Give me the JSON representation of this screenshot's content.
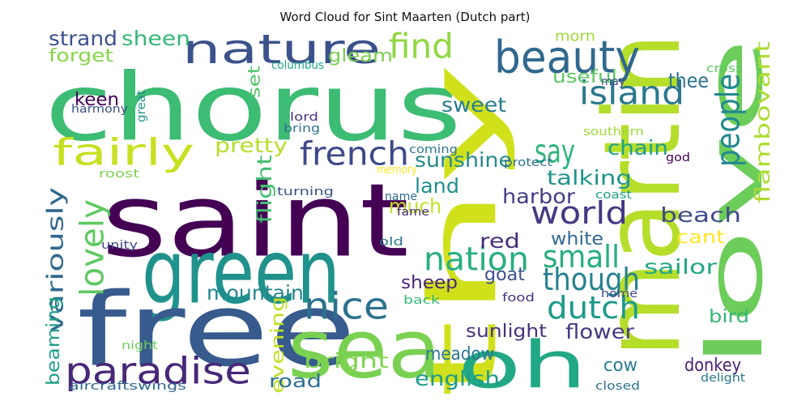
{
  "title": "Word Cloud for Sint Maarten (Dutch part)",
  "words": [
    {
      "text": "chorus",
      "color": "#3dbc74"
    },
    {
      "text": "saint",
      "color": "#440154"
    },
    {
      "text": "thy",
      "color": "#d0e11c"
    },
    {
      "text": "green",
      "color": "#20928c"
    },
    {
      "text": "free",
      "color": "#375b8d"
    },
    {
      "text": "martin",
      "color": "#b5de2b"
    },
    {
      "text": "sea",
      "color": "#7ad151"
    },
    {
      "text": "love",
      "color": "#6ccd5a"
    },
    {
      "text": "oh",
      "color": "#22a884"
    },
    {
      "text": "nature",
      "color": "#3b528b"
    },
    {
      "text": "beauty",
      "color": "#31688e"
    },
    {
      "text": "paradise",
      "color": "#482878"
    },
    {
      "text": "fairly",
      "color": "#c8e020"
    },
    {
      "text": "nice",
      "color": "#2c728e"
    },
    {
      "text": "french",
      "color": "#3e4989"
    },
    {
      "text": "island",
      "color": "#2a788e"
    },
    {
      "text": "world",
      "color": "#443983"
    },
    {
      "text": "say",
      "color": "#2fb47c"
    },
    {
      "text": "find",
      "color": "#90d743"
    },
    {
      "text": "lovely",
      "color": "#5ec962"
    },
    {
      "text": "nation",
      "color": "#29af7f"
    },
    {
      "text": "small",
      "color": "#28ae80"
    },
    {
      "text": "people",
      "color": "#23898e"
    },
    {
      "text": "dutch",
      "color": "#1f9a8a"
    },
    {
      "text": "though",
      "color": "#26828e"
    },
    {
      "text": "flamboyant",
      "color": "#addc30"
    },
    {
      "text": "variously",
      "color": "#31688e"
    },
    {
      "text": "strand",
      "color": "#3b528b"
    },
    {
      "text": "sheen",
      "color": "#35b779"
    },
    {
      "text": "gleam",
      "color": "#7ad151"
    },
    {
      "text": "forget",
      "color": "#86d549"
    },
    {
      "text": "morn",
      "color": "#9fda3a"
    },
    {
      "text": "thee",
      "color": "#2c728e"
    },
    {
      "text": "useful",
      "color": "#5ec962"
    },
    {
      "text": "sweet",
      "color": "#287c8e"
    },
    {
      "text": "keen",
      "color": "#440154"
    },
    {
      "text": "set",
      "color": "#52c569"
    },
    {
      "text": "pretty",
      "color": "#b5de2b"
    },
    {
      "text": "sunshine",
      "color": "#23898e"
    },
    {
      "text": "chain",
      "color": "#1f9e89"
    },
    {
      "text": "talking",
      "color": "#1f958b"
    },
    {
      "text": "land",
      "color": "#21918c"
    },
    {
      "text": "harbor",
      "color": "#433e85"
    },
    {
      "text": "much",
      "color": "#c2df23"
    },
    {
      "text": "red",
      "color": "#472d7b"
    },
    {
      "text": "beach",
      "color": "#3e4a89"
    },
    {
      "text": "flight",
      "color": "#44bf70"
    },
    {
      "text": "white",
      "color": "#31688e"
    },
    {
      "text": "cant",
      "color": "#fde725"
    },
    {
      "text": "sailor",
      "color": "#21a685"
    },
    {
      "text": "mountain",
      "color": "#24868e"
    },
    {
      "text": "goat",
      "color": "#3b528b"
    },
    {
      "text": "sheep",
      "color": "#482576"
    },
    {
      "text": "beaming",
      "color": "#1f9e89"
    },
    {
      "text": "evening",
      "color": "#c2df23"
    },
    {
      "text": "bird",
      "color": "#35b779"
    },
    {
      "text": "sunlight",
      "color": "#46327e"
    },
    {
      "text": "flower",
      "color": "#443a83"
    },
    {
      "text": "meadow",
      "color": "#2a788e"
    },
    {
      "text": "cow",
      "color": "#287d8e"
    },
    {
      "text": "donkey",
      "color": "#482173"
    },
    {
      "text": "bright",
      "color": "#7fd34e"
    },
    {
      "text": "english",
      "color": "#1e9b8a"
    },
    {
      "text": "road",
      "color": "#2d708e"
    },
    {
      "text": "cross",
      "color": "#5ec962"
    },
    {
      "text": "columbus",
      "color": "#22a884"
    },
    {
      "text": "may",
      "color": "#3e4989"
    },
    {
      "text": "harmony",
      "color": "#3b528b"
    },
    {
      "text": "great",
      "color": "#21918c"
    },
    {
      "text": "lord",
      "color": "#46337f"
    },
    {
      "text": "bring",
      "color": "#2c728e"
    },
    {
      "text": "southern",
      "color": "#a0da39"
    },
    {
      "text": "coming",
      "color": "#2a788e"
    },
    {
      "text": "god",
      "color": "#440154"
    },
    {
      "text": "roost",
      "color": "#7ad151"
    },
    {
      "text": "turning",
      "color": "#3b528b"
    },
    {
      "text": "memory",
      "color": "#fde725"
    },
    {
      "text": "protect",
      "color": "#2c728e"
    },
    {
      "text": "name",
      "color": "#31688e"
    },
    {
      "text": "coast",
      "color": "#1f9e89"
    },
    {
      "text": "fame",
      "color": "#482878"
    },
    {
      "text": "unity",
      "color": "#3e4a89"
    },
    {
      "text": "old",
      "color": "#2a788e"
    },
    {
      "text": "home",
      "color": "#3e4989"
    },
    {
      "text": "food",
      "color": "#46327e"
    },
    {
      "text": "back",
      "color": "#35b779"
    },
    {
      "text": "night",
      "color": "#6ece58"
    },
    {
      "text": "aircraftswings",
      "color": "#31688e"
    },
    {
      "text": "closed",
      "color": "#2c728e"
    },
    {
      "text": "delight",
      "color": "#2a788e"
    }
  ]
}
